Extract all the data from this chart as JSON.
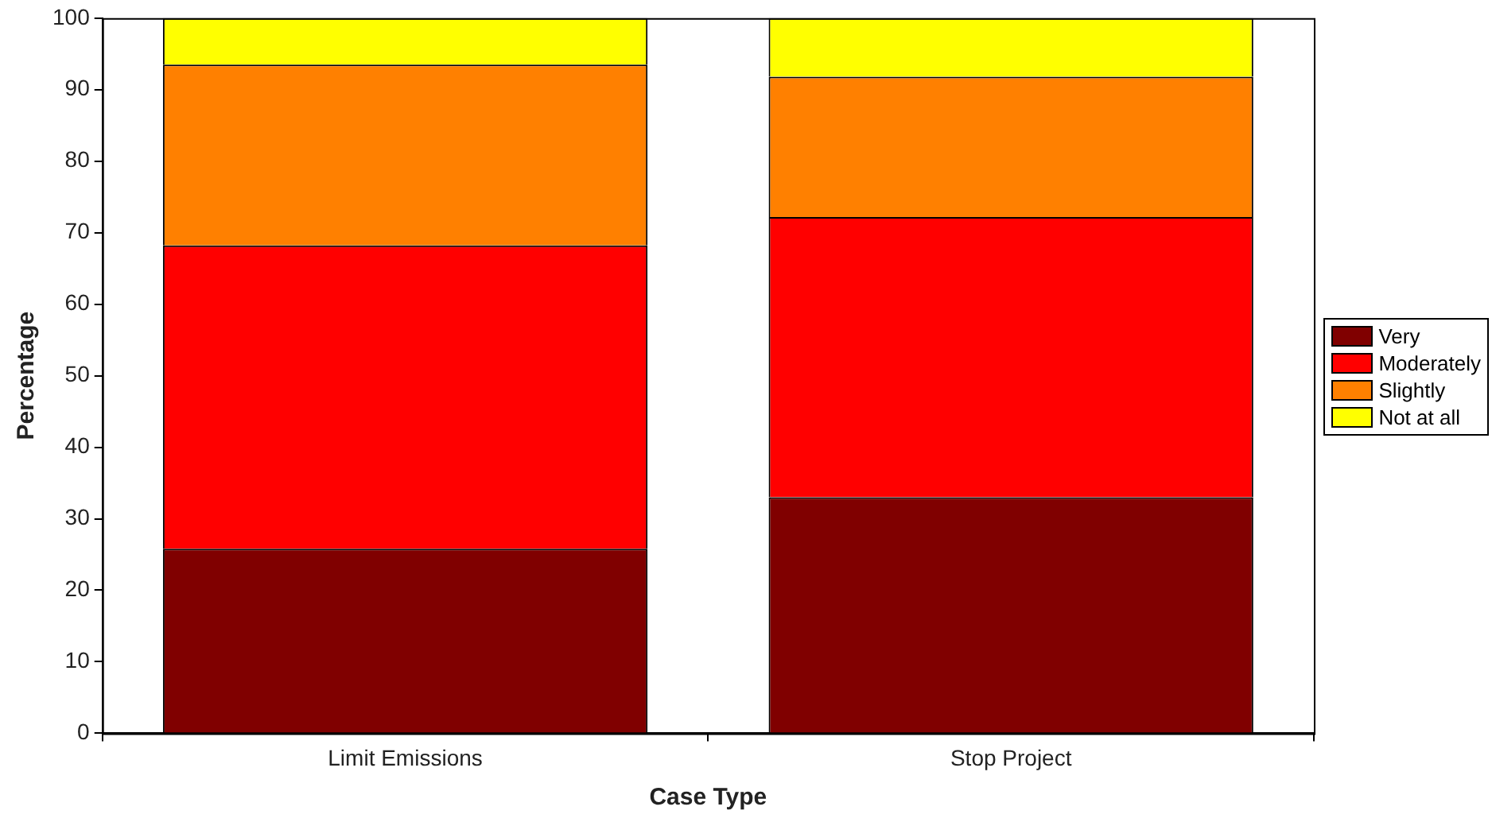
{
  "chart_data": {
    "type": "bar",
    "stacked": true,
    "xlabel": "Case Type",
    "ylabel": "Percentage",
    "categories": [
      "Limit Emissions",
      "Stop Project"
    ],
    "series": [
      {
        "name": "Very",
        "color": "#800000",
        "values": [
          25.8,
          33.0
        ]
      },
      {
        "name": "Moderately",
        "color": "#ff0000",
        "values": [
          42.4,
          39.2
        ]
      },
      {
        "name": "Slightly",
        "color": "#ff8000",
        "values": [
          25.3,
          19.6
        ]
      },
      {
        "name": "Not at all",
        "color": "#ffff00",
        "values": [
          6.5,
          8.2
        ]
      }
    ],
    "ylim": [
      0,
      100
    ],
    "yticks": [
      0,
      10,
      20,
      30,
      40,
      50,
      60,
      70,
      80,
      90,
      100
    ],
    "grid": false,
    "legend": "right"
  }
}
